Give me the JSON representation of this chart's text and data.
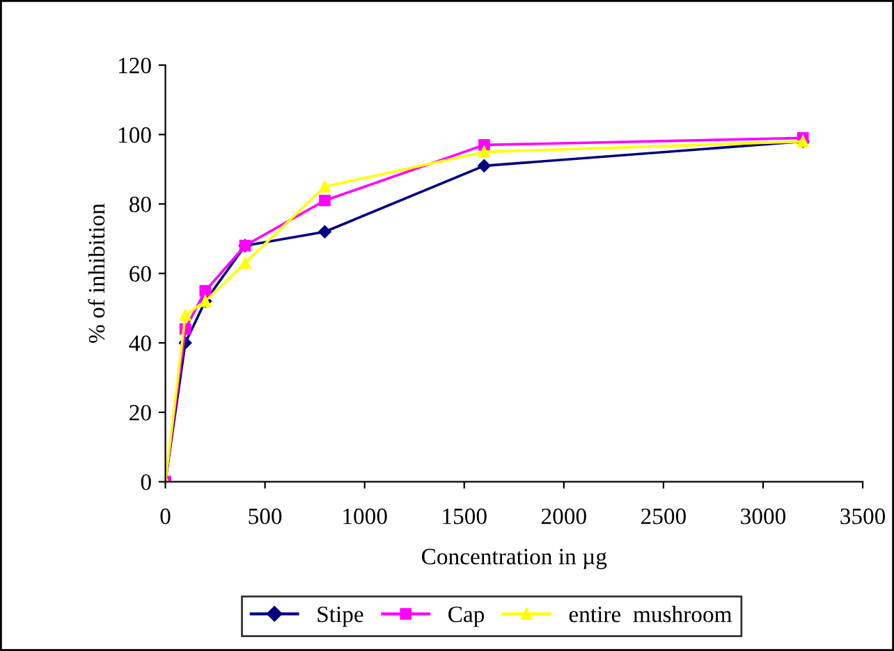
{
  "chart_data": {
    "type": "line",
    "xlabel": "Concentration in µg",
    "ylabel": "% of inhibition",
    "x": [
      0,
      100,
      200,
      400,
      800,
      1600,
      3200
    ],
    "series": [
      {
        "name": "Stipe",
        "color": "#000080",
        "marker": "diamond",
        "values": [
          0,
          40,
          52,
          68,
          72,
          91,
          98
        ]
      },
      {
        "name": "Cap",
        "color": "#ff00ff",
        "marker": "square",
        "values": [
          0,
          44,
          55,
          68,
          81,
          97,
          99
        ]
      },
      {
        "name": "entire  mushroom",
        "color": "#ffff00",
        "marker": "triangle",
        "values": [
          0,
          48,
          52,
          63,
          85,
          95,
          98
        ]
      }
    ],
    "xlim": [
      0,
      3500
    ],
    "xticks": [
      0,
      500,
      1000,
      1500,
      2000,
      2500,
      3000,
      3500
    ],
    "ylim": [
      0,
      120
    ],
    "yticks": [
      0,
      20,
      40,
      60,
      80,
      100,
      120
    ],
    "grid": false,
    "legend": "bottom",
    "line_style": "solid"
  }
}
